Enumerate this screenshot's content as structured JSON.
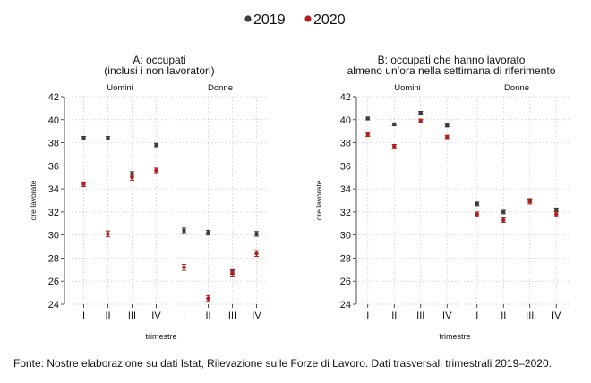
{
  "legend": [
    {
      "label": "2019",
      "color": "#3a3a3a"
    },
    {
      "label": "2020",
      "color": "#b01e1e"
    }
  ],
  "source_note": "Fonte: Nostre elaborazione su dati Istat, Rilevazione sulle Forze di Lavoro. Dati trasversali trimestrali 2019–2020.",
  "chart_data": [
    {
      "type": "scatter",
      "title_lines": [
        "A: occupati",
        "(inclusi i non lavoratori)"
      ],
      "xlabel": "trimestre",
      "ylabel": "ore lavorate",
      "categories": [
        "I",
        "II",
        "III",
        "IV"
      ],
      "ylim": [
        24,
        42
      ],
      "yticks": [
        24,
        26,
        28,
        30,
        32,
        34,
        36,
        38,
        40,
        42
      ],
      "grid": true,
      "error_bars": true,
      "facets": [
        {
          "label": "Uomini",
          "series": [
            {
              "name": "2019",
              "values": [
                38.4,
                38.4,
                35.3,
                37.8
              ],
              "err": [
                0.15,
                0.15,
                0.2,
                0.15
              ]
            },
            {
              "name": "2020",
              "values": [
                34.4,
                30.1,
                35.0,
                35.6
              ],
              "err": [
                0.2,
                0.25,
                0.25,
                0.2
              ]
            }
          ]
        },
        {
          "label": "Donne",
          "series": [
            {
              "name": "2019",
              "values": [
                30.4,
                30.2,
                26.8,
                30.1
              ],
              "err": [
                0.2,
                0.2,
                0.2,
                0.2
              ]
            },
            {
              "name": "2020",
              "values": [
                27.2,
                24.5,
                26.7,
                28.4
              ],
              "err": [
                0.25,
                0.25,
                0.25,
                0.25
              ]
            }
          ]
        }
      ]
    },
    {
      "type": "scatter",
      "title_lines": [
        "B: occupati che hanno lavorato",
        "almeno un’ora nella settimana di riferimento"
      ],
      "xlabel": "trimestre",
      "ylabel": "ore lavorate",
      "categories": [
        "I",
        "II",
        "III",
        "IV"
      ],
      "ylim": [
        24,
        42
      ],
      "yticks": [
        24,
        26,
        28,
        30,
        32,
        34,
        36,
        38,
        40,
        42
      ],
      "grid": true,
      "error_bars": true,
      "facets": [
        {
          "label": "Uomini",
          "series": [
            {
              "name": "2019",
              "values": [
                40.1,
                39.6,
                40.6,
                39.5
              ],
              "err": [
                0.12,
                0.12,
                0.12,
                0.12
              ]
            },
            {
              "name": "2020",
              "values": [
                38.7,
                37.7,
                39.9,
                38.5
              ],
              "err": [
                0.15,
                0.15,
                0.15,
                0.15
              ]
            }
          ]
        },
        {
          "label": "Donne",
          "series": [
            {
              "name": "2019",
              "values": [
                32.7,
                32.0,
                33.0,
                32.2
              ],
              "err": [
                0.15,
                0.15,
                0.15,
                0.15
              ]
            },
            {
              "name": "2020",
              "values": [
                31.8,
                31.3,
                32.9,
                31.8
              ],
              "err": [
                0.2,
                0.2,
                0.2,
                0.2
              ]
            }
          ]
        }
      ]
    }
  ]
}
